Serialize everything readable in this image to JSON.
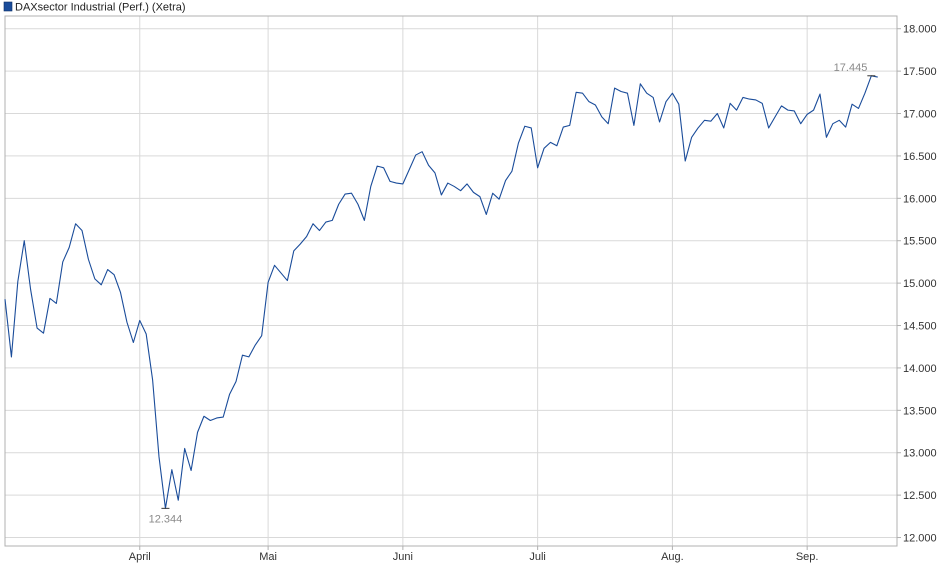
{
  "colors": {
    "series": "#1a4c9a",
    "legend_box": "#1a4c9a",
    "grid": "#d9d9d9",
    "axis": "#b0b0b0",
    "annotation": "#8a8a8a",
    "marker": "#333333"
  },
  "chart_data": {
    "type": "line",
    "title": "",
    "xlabel": "",
    "ylabel": "",
    "legend": {
      "position": "top-left",
      "entries": [
        "DAXsector Industrial (Perf.) (Xetra)"
      ]
    },
    "grid": true,
    "ylim": [
      11900,
      18150
    ],
    "y_ticks": [
      12000,
      12500,
      13000,
      13500,
      14000,
      14500,
      15000,
      15500,
      16000,
      16500,
      17000,
      17500,
      18000
    ],
    "y_tick_labels": [
      "12.000",
      "12.500",
      "13.000",
      "13.500",
      "14.000",
      "14.500",
      "15.000",
      "15.500",
      "16.000",
      "16.500",
      "17.000",
      "17.500",
      "18.000"
    ],
    "x_domain": [
      0,
      139
    ],
    "x_ticks": [
      21,
      41,
      62,
      83,
      104,
      125
    ],
    "x_tick_labels": [
      "April",
      "Mai",
      "Juni",
      "Juli",
      "Aug.",
      "Sep."
    ],
    "series": [
      {
        "name": "DAXsector Industrial (Perf.) (Xetra)",
        "values": [
          14810,
          14130,
          15020,
          15500,
          14920,
          14470,
          14410,
          14820,
          14760,
          15250,
          15420,
          15700,
          15620,
          15280,
          15050,
          14980,
          15160,
          15100,
          14890,
          14540,
          14300,
          14560,
          14400,
          13860,
          12950,
          12344,
          12800,
          12440,
          13050,
          12790,
          13240,
          13430,
          13380,
          13410,
          13420,
          13690,
          13840,
          14150,
          14130,
          14270,
          14380,
          15010,
          15210,
          15120,
          15030,
          15380,
          15460,
          15550,
          15700,
          15620,
          15720,
          15740,
          15930,
          16050,
          16060,
          15930,
          15740,
          16140,
          16380,
          16360,
          16200,
          16180,
          16170,
          16340,
          16510,
          16550,
          16390,
          16300,
          16040,
          16180,
          16140,
          16090,
          16170,
          16070,
          16020,
          15810,
          16060,
          15990,
          16210,
          16320,
          16650,
          16850,
          16830,
          16360,
          16590,
          16660,
          16620,
          16840,
          16860,
          17250,
          17240,
          17140,
          17100,
          16960,
          16880,
          17300,
          17260,
          17240,
          16860,
          17350,
          17240,
          17190,
          16900,
          17140,
          17240,
          17110,
          16440,
          16720,
          16830,
          16920,
          16910,
          17000,
          16830,
          17120,
          17040,
          17190,
          17170,
          17160,
          17120,
          16830,
          16960,
          17090,
          17040,
          17030,
          16880,
          16990,
          17040,
          17230,
          16720,
          16880,
          16920,
          16840,
          17110,
          17060,
          17240,
          17445,
          17430
        ]
      }
    ],
    "annotations": [
      {
        "label": "12.344",
        "value": 12344,
        "type": "low"
      },
      {
        "label": "17.445",
        "value": 17445,
        "type": "high"
      }
    ]
  }
}
